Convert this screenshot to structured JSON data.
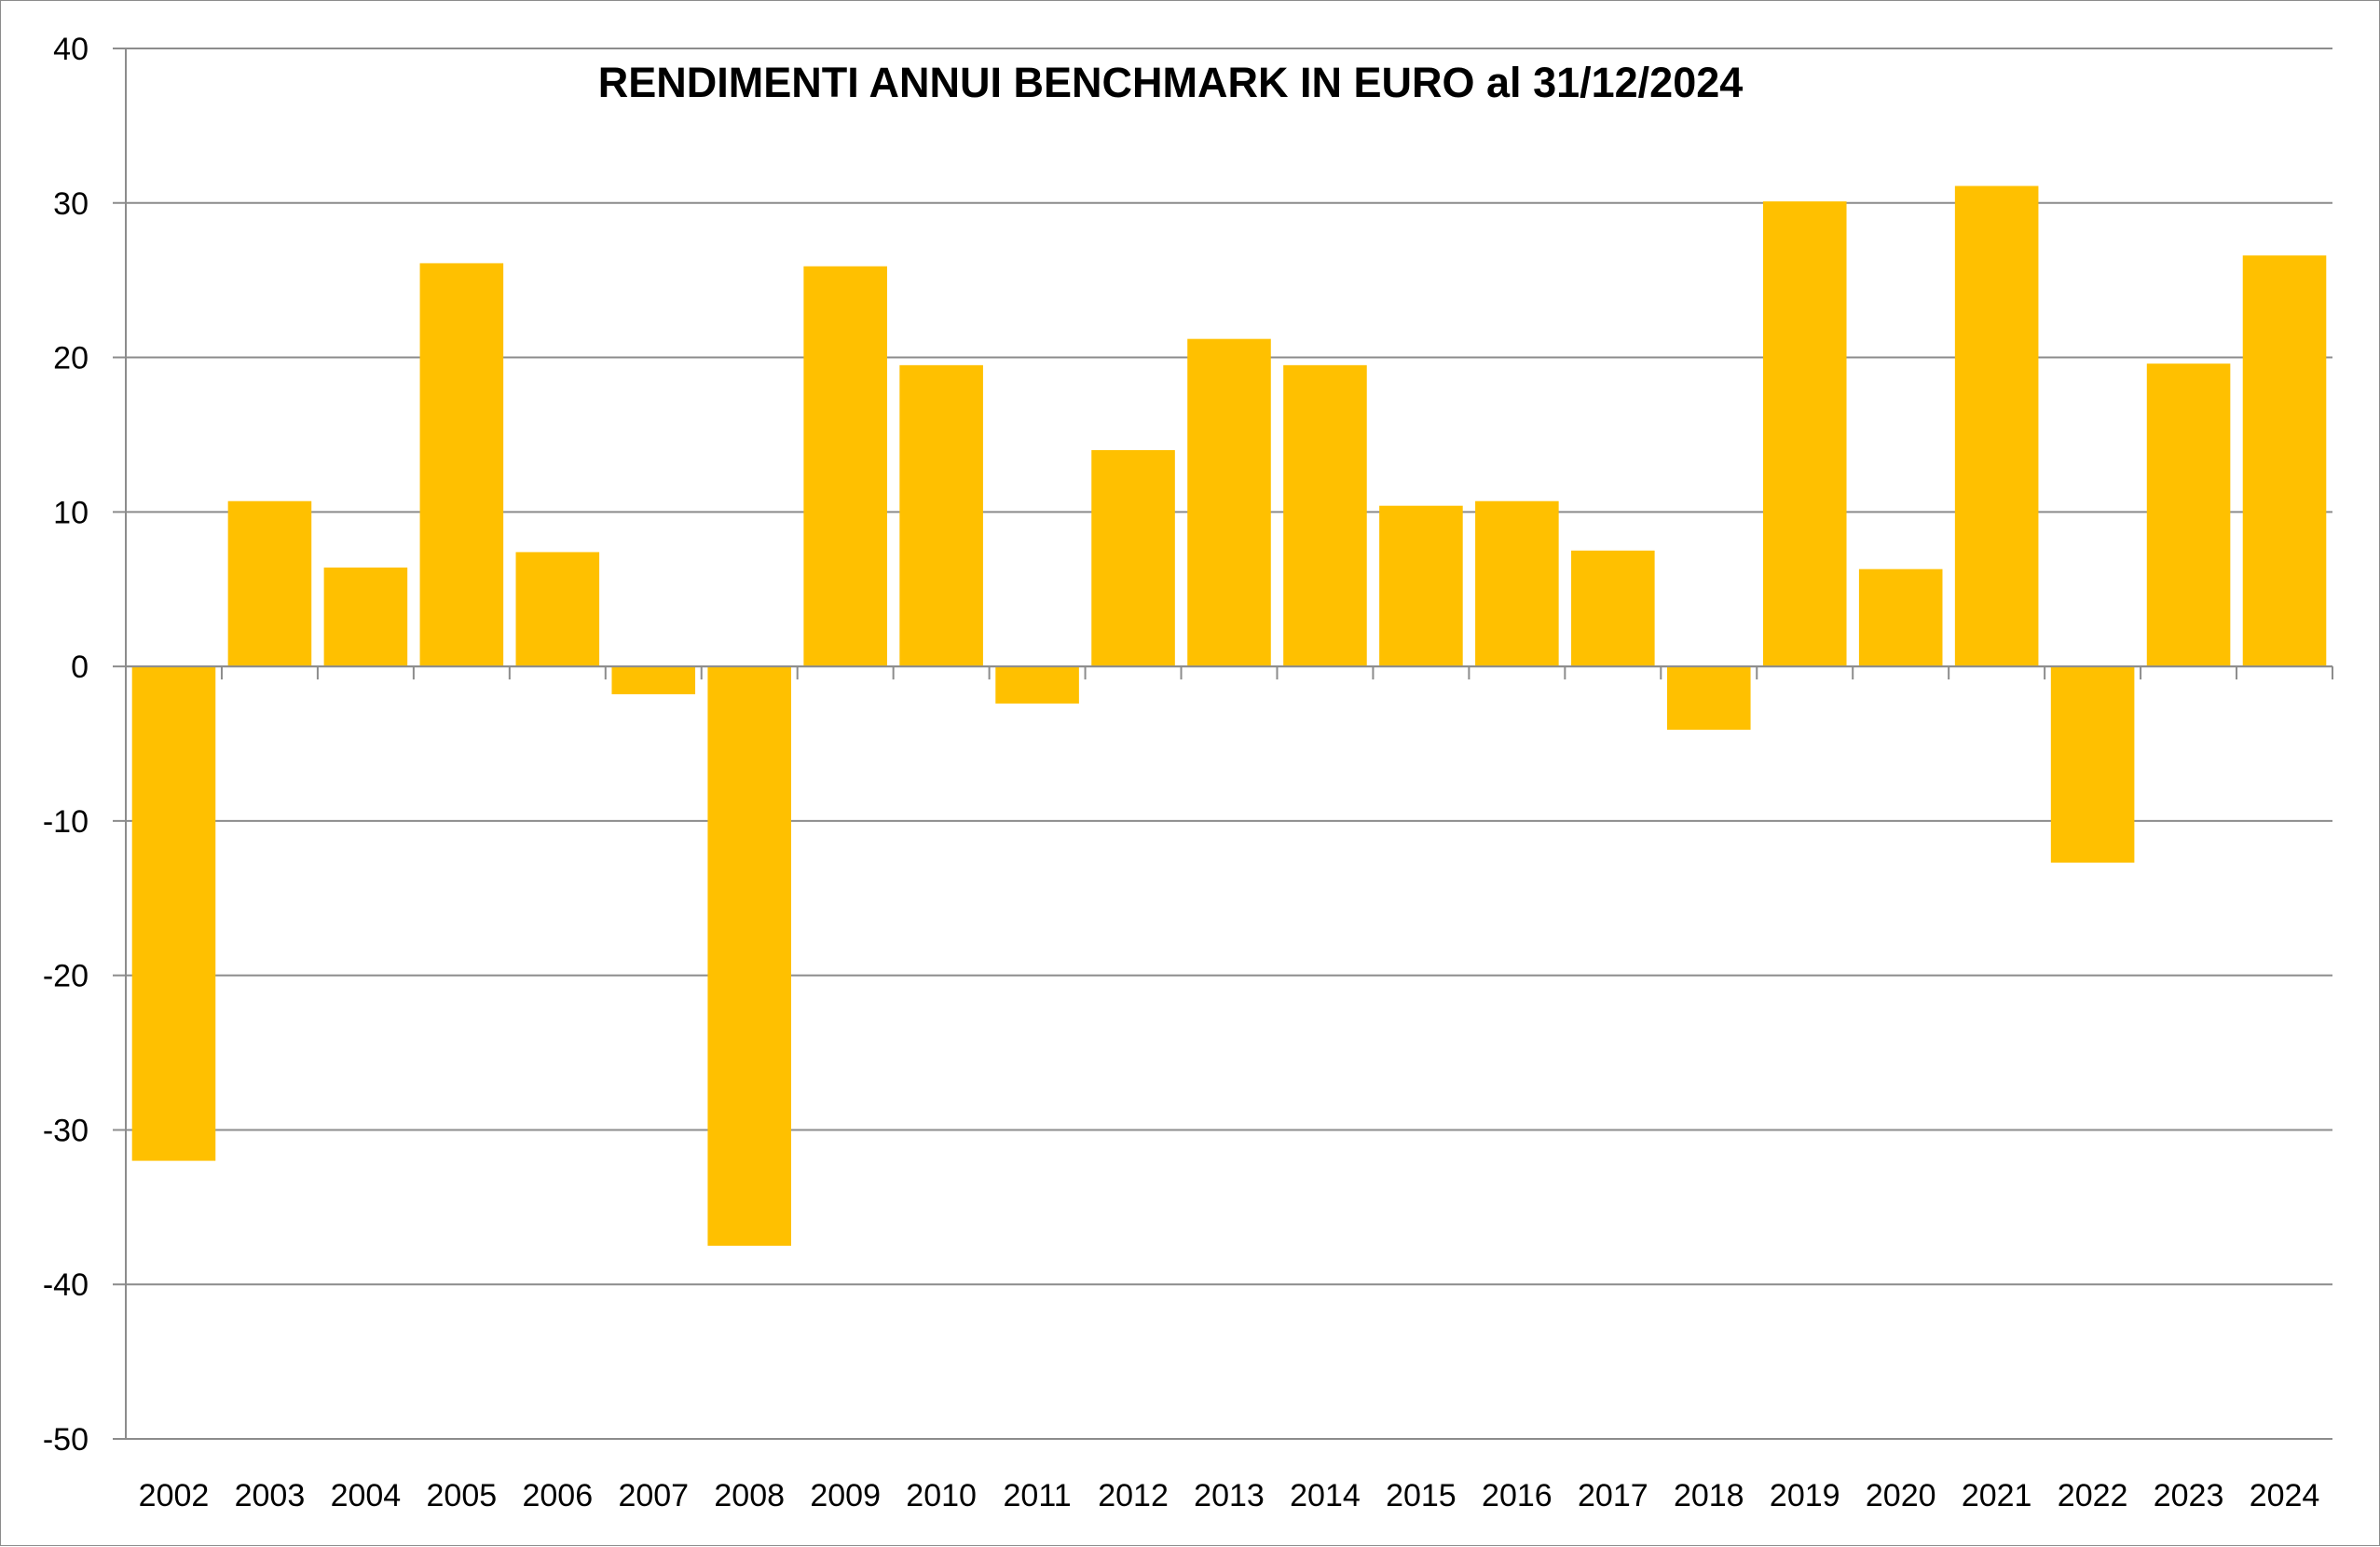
{
  "chart_data": {
    "type": "bar",
    "title": "RENDIMENTI ANNUI BENCHMARK IN EURO al 31/12/2024",
    "xlabel": "",
    "ylabel": "",
    "categories": [
      "2002",
      "2003",
      "2004",
      "2005",
      "2006",
      "2007",
      "2008",
      "2009",
      "2010",
      "2011",
      "2012",
      "2013",
      "2014",
      "2015",
      "2016",
      "2017",
      "2018",
      "2019",
      "2020",
      "2021",
      "2022",
      "2023",
      "2024"
    ],
    "values": [
      -32.0,
      10.7,
      6.4,
      26.1,
      7.4,
      -1.8,
      -37.5,
      25.9,
      19.5,
      -2.4,
      14.0,
      21.2,
      19.5,
      10.4,
      10.7,
      7.5,
      -4.1,
      30.1,
      6.3,
      31.1,
      -12.7,
      19.6,
      26.6
    ],
    "ylim": [
      -50,
      40
    ],
    "yticks": [
      40,
      30,
      20,
      10,
      0,
      -10,
      -20,
      -30,
      -40,
      -50
    ],
    "grid": true,
    "legend": "none",
    "bar_color": "#FFC000",
    "grid_color": "#8c8c8c"
  }
}
